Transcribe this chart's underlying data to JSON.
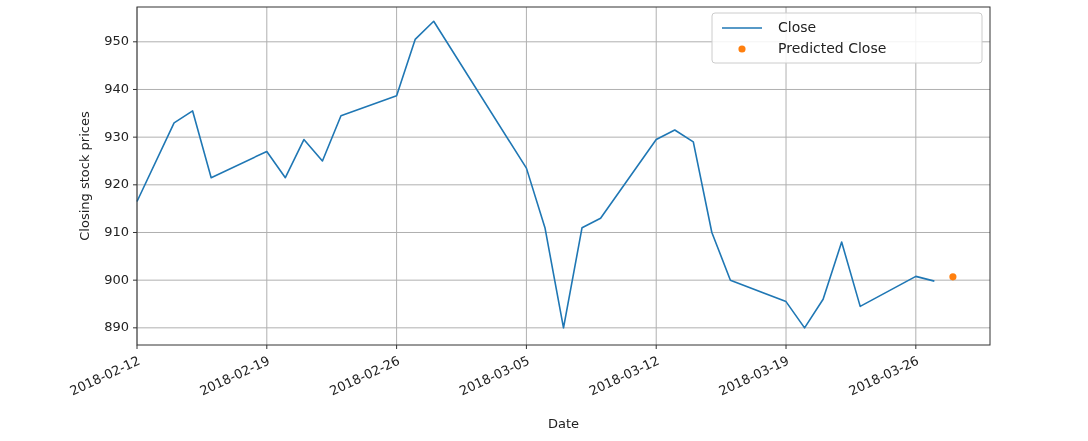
{
  "chart_data": {
    "type": "line",
    "xlabel": "Date",
    "ylabel": "Closing stock prices",
    "xlim": [
      "2018-02-12",
      "2018-03-30"
    ],
    "ylim": [
      886.4,
      957.3
    ],
    "xticks": [
      "2018-02-12",
      "2018-02-19",
      "2018-02-26",
      "2018-03-05",
      "2018-03-12",
      "2018-03-19",
      "2018-03-26"
    ],
    "yticks": [
      890,
      900,
      910,
      920,
      930,
      940,
      950
    ],
    "grid": true,
    "legend": "top right",
    "series": [
      {
        "name": "Close",
        "color": "#1f77b4",
        "marker": "none",
        "x": [
          "2018-02-12",
          "2018-02-14",
          "2018-02-15",
          "2018-02-16",
          "2018-02-19",
          "2018-02-20",
          "2018-02-21",
          "2018-02-22",
          "2018-02-23",
          "2018-02-26",
          "2018-02-27",
          "2018-02-28",
          "2018-03-05",
          "2018-03-06",
          "2018-03-07",
          "2018-03-08",
          "2018-03-09",
          "2018-03-12",
          "2018-03-13",
          "2018-03-14",
          "2018-03-15",
          "2018-03-16",
          "2018-03-19",
          "2018-03-20",
          "2018-03-21",
          "2018-03-22",
          "2018-03-23",
          "2018-03-26",
          "2018-03-27"
        ],
        "values": [
          916.5,
          933,
          935.5,
          921.5,
          927,
          921.5,
          929.5,
          925,
          934.5,
          938.7,
          950.5,
          954.3,
          923.5,
          911,
          890,
          911,
          913,
          929.5,
          931.5,
          929,
          910,
          900,
          895.5,
          890,
          896,
          908,
          894.5,
          900.8,
          899.8
        ]
      },
      {
        "name": "Predicted Close",
        "color": "#ff7f0e",
        "type": "scatter",
        "marker": "circle",
        "x": [
          "2018-03-28"
        ],
        "values": [
          900.7
        ]
      }
    ]
  }
}
